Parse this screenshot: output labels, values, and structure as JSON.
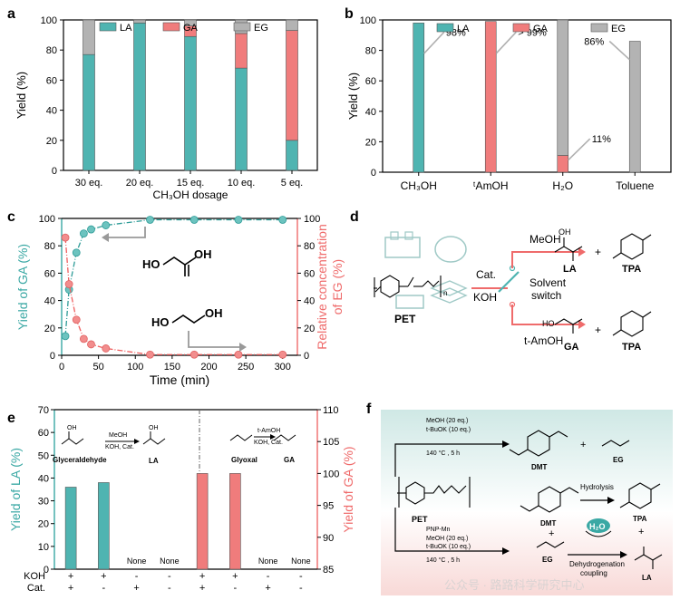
{
  "colors": {
    "LA": "#4fb4b1",
    "GA": "#f07c7c",
    "EG": "#b3b3b3",
    "axis": "#000000",
    "teal_axis": "#3aa8a4",
    "red_axis": "#ef6b6b"
  },
  "panels": {
    "a": "a",
    "b": "b",
    "c": "c",
    "d": "d",
    "e": "e",
    "f": "f"
  },
  "chart_data": [
    {
      "panel": "a",
      "type": "bar",
      "stacked": true,
      "categories": [
        "30 eq.",
        "20 eq.",
        "15 eq.",
        "10 eq.",
        "5 eq."
      ],
      "series": [
        {
          "name": "LA",
          "values": [
            77,
            98,
            89,
            68,
            20
          ]
        },
        {
          "name": "GA",
          "values": [
            0,
            0,
            7,
            23,
            73
          ]
        },
        {
          "name": "EG",
          "values": [
            23,
            2,
            4,
            9,
            7
          ]
        }
      ],
      "xlabel": "CH₃OH dosage",
      "ylabel": "Yield (%)",
      "ylim": [
        0,
        100
      ],
      "yticks": [
        "0",
        "20",
        "40",
        "60",
        "80",
        "100"
      ],
      "legend": [
        "LA",
        "GA",
        "EG"
      ],
      "legend_position": "top"
    },
    {
      "panel": "b",
      "type": "bar",
      "categories": [
        "CH₃OH",
        "ᵗAmOH",
        "H₂O",
        "Toluene"
      ],
      "series": [
        {
          "name": "LA",
          "values": [
            98,
            0,
            0,
            0
          ]
        },
        {
          "name": "GA",
          "values": [
            0,
            99,
            11,
            0
          ]
        },
        {
          "name": "EG",
          "values": [
            0,
            0,
            89,
            86
          ]
        }
      ],
      "annotations": [
        "98%",
        "> 99%",
        "11%",
        "86%"
      ],
      "ylabel": "Yield (%)",
      "ylim": [
        0,
        100
      ],
      "yticks": [
        "0",
        "20",
        "40",
        "60",
        "80",
        "100"
      ],
      "legend": [
        "LA",
        "GA",
        "EG"
      ],
      "legend_position": "top"
    },
    {
      "panel": "c",
      "type": "line",
      "series": [
        {
          "name": "GA",
          "x": [
            5,
            10,
            20,
            30,
            40,
            60,
            120,
            180,
            240,
            300
          ],
          "values": [
            14,
            48,
            75,
            89,
            92,
            95,
            99,
            99,
            99,
            99
          ]
        },
        {
          "name": "EG",
          "x": [
            5,
            10,
            20,
            30,
            40,
            60,
            120,
            180,
            240,
            300
          ],
          "values": [
            86,
            52,
            26,
            12,
            8,
            5,
            0.5,
            0.5,
            0.5,
            0.5
          ]
        }
      ],
      "xlabel": "Time (min)",
      "ylabel": "Yield of GA (%)",
      "y2label": "Relative concentration of EG (%)",
      "y2label_lines": [
        "Relative concentration",
        "of EG (%)"
      ],
      "xlim": [
        0,
        320
      ],
      "ylim": [
        0,
        100
      ],
      "xticks": [
        "0",
        "50",
        "100",
        "150",
        "200",
        "250",
        "300"
      ],
      "yticks": [
        "0",
        "20",
        "40",
        "60",
        "80",
        "100"
      ]
    },
    {
      "panel": "e",
      "type": "bar",
      "groups": [
        {
          "series": "LA",
          "axis": "left",
          "values": [
            36,
            38,
            null,
            null
          ],
          "none_labels": [
            "",
            "",
            "None",
            "None"
          ]
        },
        {
          "series": "GA",
          "axis": "right",
          "values": [
            100,
            100,
            null,
            null
          ],
          "none_labels": [
            "",
            "",
            "None",
            "None"
          ]
        }
      ],
      "ylabel": "Yield of LA (%)",
      "y2label": "Yield of GA (%)",
      "ylim": [
        0,
        70
      ],
      "y2lim": [
        85,
        110
      ],
      "yticks": [
        "0",
        "10",
        "20",
        "30",
        "40",
        "50",
        "60",
        "70"
      ],
      "y2ticks": [
        "85",
        "90",
        "95",
        "100",
        "105",
        "110"
      ],
      "condition_rows": [
        {
          "label": "KOH",
          "values": [
            "+",
            "+",
            "-",
            "-",
            "+",
            "+",
            "-",
            "-"
          ]
        },
        {
          "label": "Cat.",
          "values": [
            "+",
            "-",
            "+",
            "-",
            "+",
            "-",
            "+",
            "-"
          ]
        }
      ]
    }
  ],
  "panel_c_text": {
    "ga_molecule": "OH",
    "ga_molecule_2": "HO",
    "eg_molecule": "HO",
    "eg_molecule_2": "OH"
  },
  "panel_d": {
    "cat": "Cat.",
    "koh": "KOH",
    "pet": "PET",
    "solvent": "Solvent",
    "switch": "switch",
    "meoh": "MeOH",
    "tamoh": "t-AmOH",
    "la": "LA",
    "ga": "GA",
    "tpa1": "TPA",
    "tpa2": "TPA",
    "plus": "+",
    "oh": "OH",
    "ho": "HO",
    "o": "O",
    "n": "n"
  },
  "panel_e_text": {
    "glyceraldehyde": "Glyceraldehyde",
    "la": "LA",
    "glyoxal": "Glyoxal",
    "ga": "GA",
    "meoh": "MeOH",
    "tamoh": "t-AmOH",
    "cond": "KOH, Cat.",
    "cond2": "KOH, Cat.",
    "oh": "OH",
    "none": "None"
  },
  "panel_f": {
    "top_line1": "MeOH (20 eq.)",
    "top_line2": "t-BuOK (10 eq.)",
    "top_line3": "140 °C , 5 h",
    "dmt_top": "DMT",
    "eg_top": "EG",
    "pet": "PET",
    "bottom_line0": "PNP-Mn",
    "bottom_line1": "MeOH (20 eq.)",
    "bottom_line2": "t-BuOK (10 eq.)",
    "bottom_line3": "140 °C , 5 h",
    "dmt_mid": "DMT",
    "eg_bottom": "EG",
    "hydrolysis": "Hydrolysis",
    "h2o": "H₂O",
    "dehydrogenation": "Dehydrogenation",
    "coupling": "coupling",
    "tpa": "TPA",
    "la": "LA",
    "plus": "+",
    "watermark": "公众号 · 路路科学研究中心"
  }
}
